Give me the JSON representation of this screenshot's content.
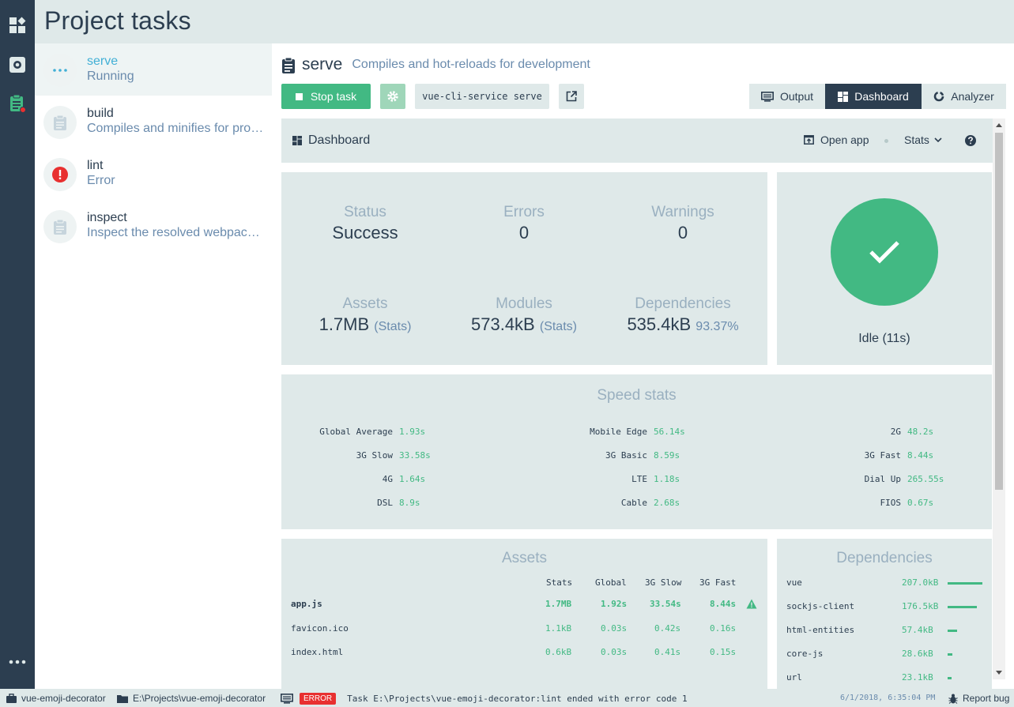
{
  "app": {
    "title": "Project tasks"
  },
  "rail": {
    "icons": [
      "dashboard-icon",
      "plugins-settings-icon",
      "tasks-icon",
      "more-icon"
    ]
  },
  "tasks": [
    {
      "name": "serve",
      "description": "Running",
      "status": "running"
    },
    {
      "name": "build",
      "description": "Compiles and minifies for production",
      "status": "idle"
    },
    {
      "name": "lint",
      "description": "Error",
      "status": "error"
    },
    {
      "name": "inspect",
      "description": "Inspect the resolved webpack config",
      "status": "idle"
    }
  ],
  "task": {
    "name": "serve",
    "description": "Compiles and hot-reloads for development",
    "stop_label": "Stop task",
    "command": "vue-cli-service serve"
  },
  "views": {
    "output": "Output",
    "dashboard": "Dashboard",
    "analyzer": "Analyzer"
  },
  "dashboard": {
    "title": "Dashboard",
    "open_app": "Open app",
    "stats_select": "Stats",
    "status": {
      "status_label": "Status",
      "status_value": "Success",
      "errors_label": "Errors",
      "errors_value": "0",
      "warnings_label": "Warnings",
      "warnings_value": "0",
      "assets_label": "Assets",
      "assets_value": "1.7MB",
      "assets_note": "(Stats)",
      "modules_label": "Modules",
      "modules_value": "573.4kB",
      "modules_note": "(Stats)",
      "deps_label": "Dependencies",
      "deps_value": "535.4kB",
      "deps_note": "93.37%"
    },
    "idle": "Idle (11s)",
    "speed": {
      "title": "Speed stats",
      "items": [
        {
          "label": "Global Average",
          "value": "1.93s"
        },
        {
          "label": "Mobile Edge",
          "value": "56.14s"
        },
        {
          "label": "2G",
          "value": "48.2s"
        },
        {
          "label": "3G Slow",
          "value": "33.58s"
        },
        {
          "label": "3G Basic",
          "value": "8.59s"
        },
        {
          "label": "3G Fast",
          "value": "8.44s"
        },
        {
          "label": "4G",
          "value": "1.64s"
        },
        {
          "label": "LTE",
          "value": "1.18s"
        },
        {
          "label": "Dial Up",
          "value": "265.55s"
        },
        {
          "label": "DSL",
          "value": "8.9s"
        },
        {
          "label": "Cable",
          "value": "2.68s"
        },
        {
          "label": "FIOS",
          "value": "0.67s"
        }
      ]
    },
    "assets": {
      "title": "Assets",
      "columns": [
        "Stats",
        "Global",
        "3G Slow",
        "3G Fast"
      ],
      "rows": [
        {
          "name": "app.js",
          "stats": "1.7MB",
          "global": "1.92s",
          "slow": "33.54s",
          "fast": "8.44s",
          "warning": true
        },
        {
          "name": "favicon.ico",
          "stats": "1.1kB",
          "global": "0.03s",
          "slow": "0.42s",
          "fast": "0.16s",
          "warning": false
        },
        {
          "name": "index.html",
          "stats": "0.6kB",
          "global": "0.03s",
          "slow": "0.41s",
          "fast": "0.15s",
          "warning": false
        }
      ]
    },
    "dependencies": {
      "title": "Dependencies",
      "items": [
        {
          "name": "vue",
          "size": "207.0kB",
          "fraction": 1.0
        },
        {
          "name": "sockjs-client",
          "size": "176.5kB",
          "fraction": 0.85
        },
        {
          "name": "html-entities",
          "size": "57.4kB",
          "fraction": 0.28
        },
        {
          "name": "core-js",
          "size": "28.6kB",
          "fraction": 0.14
        },
        {
          "name": "url",
          "size": "23.1kB",
          "fraction": 0.11
        }
      ]
    }
  },
  "statusbar": {
    "project": "vue-emoji-decorator",
    "path": "E:\\Projects\\vue-emoji-decorator",
    "log_badge": "ERROR",
    "log_message": "Task E:\\Projects\\vue-emoji-decorator:lint ended with error code 1",
    "timestamp": "6/1/2018, 6:35:04 PM",
    "report_bug": "Report bug"
  },
  "colors": {
    "accent": "#42b983",
    "sidebar": "#2c3e50",
    "panel": "#dfe9e9",
    "error": "#e83030",
    "running": "#42b0d6"
  }
}
